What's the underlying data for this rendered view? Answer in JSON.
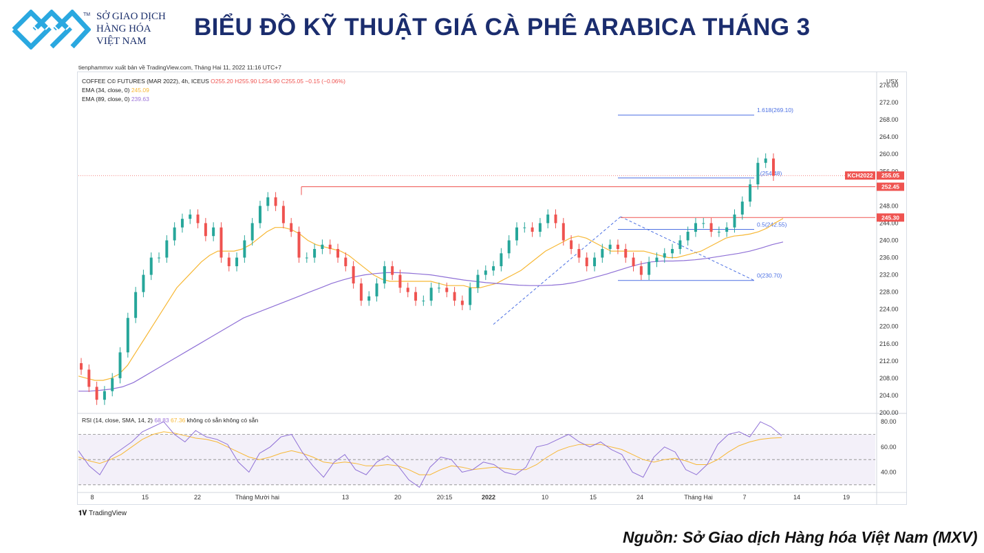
{
  "logo": {
    "name_line1": "SỞ GIAO DỊCH",
    "name_line2": "HÀNG HÓA",
    "name_line3": "VIỆT NAM",
    "tm": "TM",
    "color": "#2aa8e0"
  },
  "page_title": "BIỂU ĐỒ KỸ THUẬT GIÁ CÀ PHÊ ARABICA THÁNG 3",
  "publisher_line": "tienphammxv xuất bản về TradingView.com, Tháng Hai 11, 2022 11:16 UTC+7",
  "legend": {
    "symbol": "COFFEE C© FUTURES (MAR 2022), 4h, ICEUS",
    "open": "O255.20",
    "high": "H255.90",
    "low": "L254.90",
    "close": "C255.05",
    "change": "−0.15 (−0.06%)",
    "ema34_label": "EMA (34, close, 0)",
    "ema34_value": "245.09",
    "ema89_label": "EMA (89, close, 0)",
    "ema89_value": "239.63"
  },
  "rsi_legend": {
    "label": "RSI (14, close, SMA, 14, 2)",
    "rsi_value": "68.83",
    "sma_value": "67.36",
    "na1": "không có sẵn",
    "na2": "không có sẵn"
  },
  "currency_label": "USX",
  "price_tags": {
    "symbol_tag": "KCH2022",
    "last": "255.05",
    "resistance": "252.45",
    "support": "245.30"
  },
  "fib_labels": {
    "f1618": "1.618(269.10)",
    "f1": "1(254.48)",
    "f05": "0.5(242.55)",
    "f0": "0(230.70)"
  },
  "tradingview_logo": "TradingView",
  "source": "Nguồn: Sở Giao dịch Hàng hóa Việt Nam (MXV)",
  "colors": {
    "up": "#26a69a",
    "down": "#ef5350",
    "ema34": "#f7b733",
    "ema89": "#8e6fd6",
    "fib": "#4a6fe3",
    "level": "#ef5350",
    "title": "#1b2d6e"
  },
  "chart_data": [
    {
      "type": "candlestick",
      "title": "COFFEE C© FUTURES (MAR 2022), 4h, ICEUS",
      "ylim": [
        200,
        276
      ],
      "y_ticks": [
        200,
        204,
        208,
        212,
        216,
        220,
        224,
        228,
        232,
        236,
        240,
        244,
        248,
        252,
        256,
        260,
        264,
        268,
        272,
        276
      ],
      "x_ticks": [
        "8",
        "15",
        "22",
        "Tháng Mười hai",
        "13",
        "20",
        "20:15",
        "2022",
        "10",
        "15",
        "24",
        "Tháng Hai",
        "7",
        "14",
        "19"
      ],
      "price_path": [
        210,
        206,
        203,
        205,
        208,
        214,
        222,
        228,
        232,
        236,
        236,
        240,
        243,
        245,
        246,
        244,
        241,
        243,
        236,
        234,
        236,
        240,
        244,
        248,
        250,
        248,
        244,
        242,
        236,
        236,
        238,
        239,
        238,
        236,
        234,
        230,
        226,
        227,
        230,
        234,
        232,
        229,
        228,
        226,
        226,
        229,
        229,
        228,
        226,
        225,
        229,
        232,
        233,
        234,
        237,
        240,
        243,
        243,
        242,
        244,
        246,
        244,
        240,
        238,
        236,
        234,
        236,
        238,
        239,
        238,
        236,
        234,
        232,
        235,
        236,
        237,
        238,
        240,
        242,
        244,
        244,
        242,
        242,
        243,
        246,
        249,
        253,
        258,
        259,
        255
      ],
      "ema34_path": [
        208.5,
        208,
        207.5,
        207.5,
        208,
        209,
        211,
        214,
        217,
        220,
        223,
        226,
        229,
        231,
        233,
        235,
        236.5,
        237.5,
        237.5,
        237.5,
        238,
        239,
        240.5,
        242,
        243,
        243,
        242.5,
        241.5,
        240,
        239,
        238.5,
        238,
        237.5,
        236.5,
        235,
        233.5,
        232,
        231,
        230.5,
        230.5,
        230.5,
        230.5,
        230.5,
        230.5,
        230,
        229.5,
        229.5,
        229.5,
        229,
        229,
        229.5,
        230,
        231,
        232,
        233,
        234.5,
        236,
        237.5,
        238.5,
        239.5,
        240.5,
        241,
        240.5,
        239.5,
        238.5,
        237.5,
        237.5,
        237.5,
        237.5,
        237.5,
        237,
        236.5,
        236,
        236,
        236.5,
        237,
        237.5,
        238.5,
        239.5,
        240.5,
        241,
        241.2,
        241.5,
        242,
        242.8,
        244,
        245.09
      ],
      "ema89_path": [
        205,
        205,
        205.2,
        205.5,
        206,
        207,
        208.5,
        210,
        211.5,
        213,
        214.5,
        216,
        217.5,
        219,
        220.5,
        222,
        223,
        224,
        225,
        226,
        227,
        228,
        229,
        230,
        230.8,
        231.5,
        232,
        232.3,
        232.5,
        232.5,
        232.4,
        232.2,
        232,
        231.6,
        231.2,
        230.8,
        230.5,
        230.2,
        230,
        229.8,
        229.6,
        229.5,
        229.5,
        229.6,
        229.8,
        230.2,
        230.8,
        231.5,
        232.2,
        233,
        233.8,
        234.5,
        235,
        235.2,
        235.2,
        235.3,
        235.5,
        235.8,
        236.2,
        236.6,
        237,
        237.5,
        238.2,
        239,
        239.63
      ],
      "fibonacci": {
        "levels": [
          {
            "ratio": 1.618,
            "price": 269.1
          },
          {
            "ratio": 1,
            "price": 254.48
          },
          {
            "ratio": 0.5,
            "price": 242.55
          },
          {
            "ratio": 0,
            "price": 230.7
          }
        ]
      },
      "horizontal_levels": [
        252.45,
        245.3
      ],
      "last_price": 255.05
    },
    {
      "type": "line",
      "title": "RSI (14, close, SMA, 14, 2)",
      "ylim": [
        25,
        85
      ],
      "y_ticks": [
        40,
        60,
        80
      ],
      "band": [
        30,
        70
      ],
      "midline": 50,
      "rsi_path": [
        57,
        45,
        38,
        52,
        58,
        64,
        72,
        76,
        80,
        70,
        64,
        73,
        68,
        66,
        62,
        48,
        40,
        55,
        60,
        68,
        70,
        56,
        45,
        36,
        48,
        54,
        42,
        38,
        48,
        53,
        45,
        34,
        28,
        44,
        52,
        50,
        40,
        42,
        48,
        46,
        40,
        38,
        44,
        60,
        62,
        66,
        70,
        64,
        60,
        64,
        58,
        54,
        40,
        36,
        52,
        60,
        56,
        42,
        38,
        46,
        62,
        70,
        72,
        68,
        80,
        76,
        69
      ],
      "sma_path": [
        52,
        49,
        47,
        50,
        54,
        60,
        66,
        70,
        72,
        71,
        69,
        67,
        66,
        64,
        60,
        56,
        52,
        50,
        52,
        55,
        57,
        55,
        52,
        48,
        47,
        48,
        47,
        45,
        45,
        46,
        45,
        42,
        38,
        38,
        42,
        45,
        44,
        42,
        43,
        44,
        43,
        42,
        42,
        46,
        52,
        57,
        60,
        62,
        62,
        62,
        60,
        58,
        54,
        50,
        48,
        50,
        51,
        49,
        46,
        46,
        50,
        56,
        61,
        64,
        66,
        67,
        67.36
      ]
    }
  ]
}
